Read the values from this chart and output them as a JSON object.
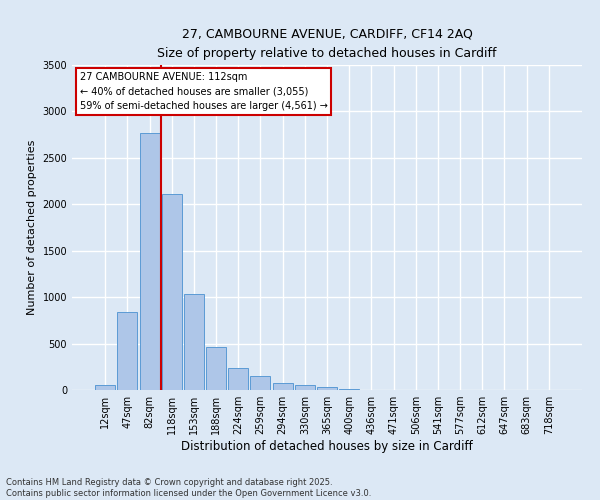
{
  "title_line1": "27, CAMBOURNE AVENUE, CARDIFF, CF14 2AQ",
  "title_line2": "Size of property relative to detached houses in Cardiff",
  "xlabel": "Distribution of detached houses by size in Cardiff",
  "ylabel": "Number of detached properties",
  "bar_labels": [
    "12sqm",
    "47sqm",
    "82sqm",
    "118sqm",
    "153sqm",
    "188sqm",
    "224sqm",
    "259sqm",
    "294sqm",
    "330sqm",
    "365sqm",
    "400sqm",
    "436sqm",
    "471sqm",
    "506sqm",
    "541sqm",
    "577sqm",
    "612sqm",
    "647sqm",
    "683sqm",
    "718sqm"
  ],
  "bar_values": [
    55,
    840,
    2770,
    2110,
    1035,
    460,
    235,
    155,
    80,
    50,
    30,
    15,
    5,
    0,
    0,
    0,
    0,
    0,
    0,
    0,
    0
  ],
  "bar_color": "#aec6e8",
  "bar_edge_color": "#5b9bd5",
  "ylim": [
    0,
    3500
  ],
  "vline_color": "#cc0000",
  "annotation_text_line1": "27 CAMBOURNE AVENUE: 112sqm",
  "annotation_text_line2": "← 40% of detached houses are smaller (3,055)",
  "annotation_text_line3": "59% of semi-detached houses are larger (4,561) →",
  "annotation_box_color": "#cc0000",
  "footer_line1": "Contains HM Land Registry data © Crown copyright and database right 2025.",
  "footer_line2": "Contains public sector information licensed under the Open Government Licence v3.0.",
  "background_color": "#dce8f5",
  "grid_color": "#ffffff",
  "yticks": [
    0,
    500,
    1000,
    1500,
    2000,
    2500,
    3000,
    3500
  ]
}
